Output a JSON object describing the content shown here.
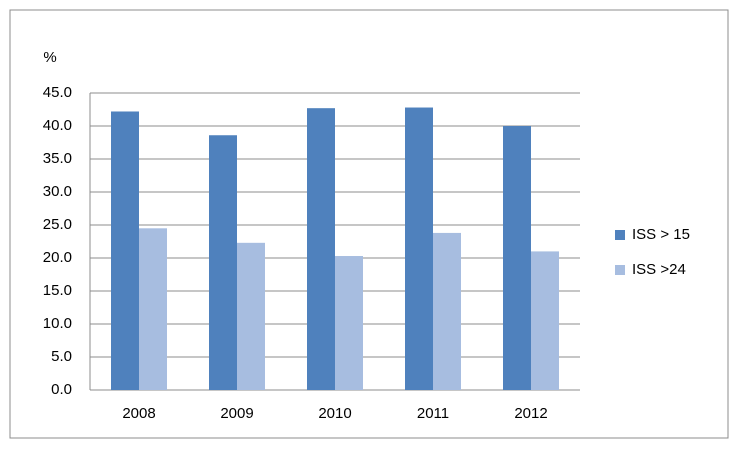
{
  "chart_data": {
    "type": "bar",
    "y_label": "%",
    "categories": [
      "2008",
      "2009",
      "2010",
      "2011",
      "2012"
    ],
    "series": [
      {
        "name": "ISS > 15",
        "color": "#4f81bd",
        "values": [
          42.2,
          38.6,
          42.7,
          42.8,
          40.0
        ]
      },
      {
        "name": "ISS >24",
        "color": "#a7bde0",
        "values": [
          24.5,
          22.3,
          20.3,
          23.8,
          21.0
        ]
      }
    ],
    "ylim": [
      0,
      45
    ],
    "yticks": [
      {
        "value": 0,
        "label": "0.0"
      },
      {
        "value": 5,
        "label": "5.0"
      },
      {
        "value": 10,
        "label": "10.0"
      },
      {
        "value": 15,
        "label": "15.0"
      },
      {
        "value": 20,
        "label": "20.0"
      },
      {
        "value": 25,
        "label": "25.0"
      },
      {
        "value": 30,
        "label": "30.0"
      },
      {
        "value": 35,
        "label": "35.0"
      },
      {
        "value": 40,
        "label": "40.0"
      },
      {
        "value": 45,
        "label": "45.0"
      }
    ],
    "grid": true,
    "legend": "right"
  }
}
